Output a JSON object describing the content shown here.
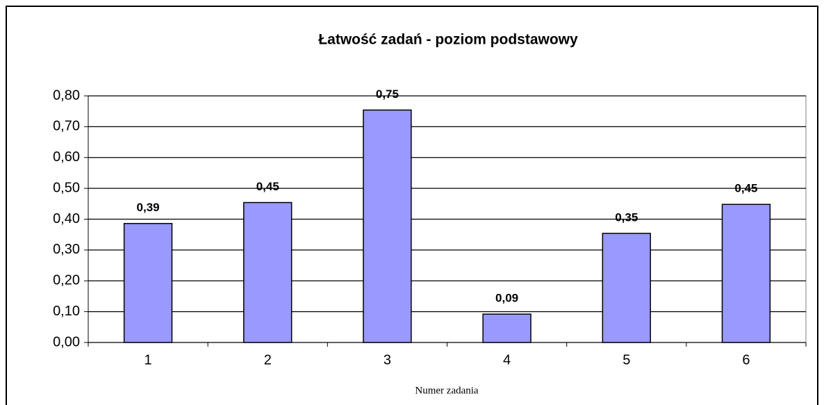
{
  "chart_data": {
    "type": "bar",
    "title": "Łatwość zadań - poziom podstawowy",
    "x_label": "Numer zadania",
    "categories": [
      "1",
      "2",
      "3",
      "4",
      "5",
      "6"
    ],
    "values": [
      0.386,
      0.454,
      0.754,
      0.092,
      0.354,
      0.448
    ],
    "value_labels": [
      "0,39",
      "0,45",
      "0,75",
      "0,09",
      "0,35",
      "0,45"
    ],
    "color": "#9999ff",
    "ylim": [
      0,
      0.8
    ],
    "yticks": [
      {
        "value": 0,
        "label": "0,00"
      },
      {
        "value": 0.1,
        "label": "0,10"
      },
      {
        "value": 0.2,
        "label": "0,20"
      },
      {
        "value": 0.3,
        "label": "0,30"
      },
      {
        "value": 0.4,
        "label": "0,40"
      },
      {
        "value": 0.5,
        "label": "0,50"
      },
      {
        "value": 0.6,
        "label": "0,60"
      },
      {
        "value": 0.7,
        "label": "0,70"
      },
      {
        "value": 0.8,
        "label": "0,80"
      }
    ],
    "grid": true
  }
}
